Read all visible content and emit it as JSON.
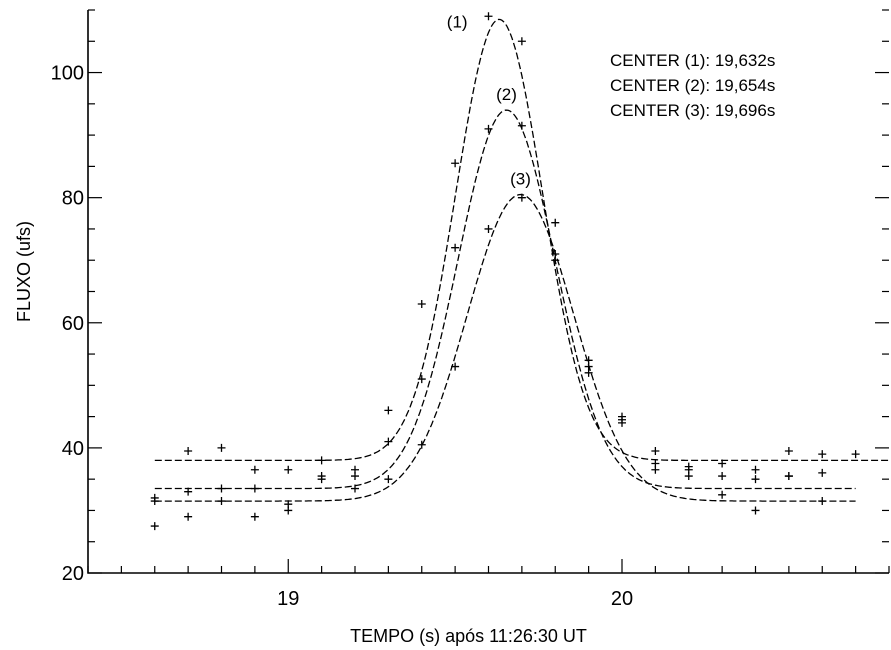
{
  "chart_data": {
    "type": "scatter",
    "title": "",
    "xlabel": "TEMPO (s)  após  11:26:30 UT",
    "ylabel": "FLUXO (ufs)",
    "xlim": [
      18.4,
      20.8
    ],
    "ylim": [
      20,
      110
    ],
    "x_ticks": [
      19,
      20
    ],
    "y_ticks": [
      20,
      40,
      60,
      80,
      100
    ],
    "grid": false,
    "annotations": [
      "CENTER (1): 19,632s",
      "CENTER (2): 19,654s",
      "CENTER (3): 19,696s"
    ],
    "series": [
      {
        "label": "(1)",
        "fit": {
          "center": 19.632,
          "baseline": 38.0,
          "amplitude": 70.5,
          "sigma": 0.13
        },
        "x": [
          18.6,
          18.7,
          18.8,
          18.9,
          19.0,
          19.1,
          19.2,
          19.3,
          19.4,
          19.5,
          19.6,
          19.7,
          19.8,
          19.9,
          20.0,
          20.1,
          20.2,
          20.3,
          20.4,
          20.5,
          20.6,
          20.7
        ],
        "y": [
          32.0,
          39.5,
          40.0,
          36.5,
          36.5,
          38.0,
          36.5,
          46.0,
          63.0,
          85.5,
          109.0,
          105.0,
          76.0,
          54.0,
          44.5,
          39.5,
          37.0,
          37.5,
          36.5,
          39.5,
          39.0,
          39.0
        ]
      },
      {
        "label": "(2)",
        "fit": {
          "center": 19.654,
          "baseline": 33.5,
          "amplitude": 60.5,
          "sigma": 0.145
        },
        "x": [
          18.6,
          18.7,
          18.8,
          18.9,
          19.0,
          19.1,
          19.2,
          19.3,
          19.4,
          19.5,
          19.6,
          19.7,
          19.8,
          19.9,
          20.0,
          20.1,
          20.2,
          20.3,
          20.4,
          20.5,
          20.6
        ],
        "y": [
          27.5,
          33.0,
          33.5,
          33.5,
          31.0,
          35.5,
          35.5,
          41.0,
          51.0,
          72.0,
          91.0,
          91.5,
          71.0,
          53.0,
          45.0,
          37.5,
          36.5,
          35.5,
          35.0,
          35.5,
          36.0
        ]
      },
      {
        "label": "(3)",
        "fit": {
          "center": 19.696,
          "baseline": 31.5,
          "amplitude": 49.0,
          "sigma": 0.16
        },
        "x": [
          18.6,
          18.7,
          18.8,
          18.9,
          19.0,
          19.1,
          19.2,
          19.3,
          19.4,
          19.5,
          19.6,
          19.7,
          19.8,
          19.9,
          20.0,
          20.1,
          20.2,
          20.3,
          20.4,
          20.5,
          20.6
        ],
        "y": [
          31.5,
          29.0,
          31.5,
          29.0,
          30.0,
          35.0,
          33.5,
          35.0,
          40.5,
          53.0,
          75.0,
          80.0,
          70.0,
          52.0,
          44.0,
          36.5,
          35.5,
          32.5,
          30.0,
          35.5,
          31.5
        ]
      }
    ]
  }
}
